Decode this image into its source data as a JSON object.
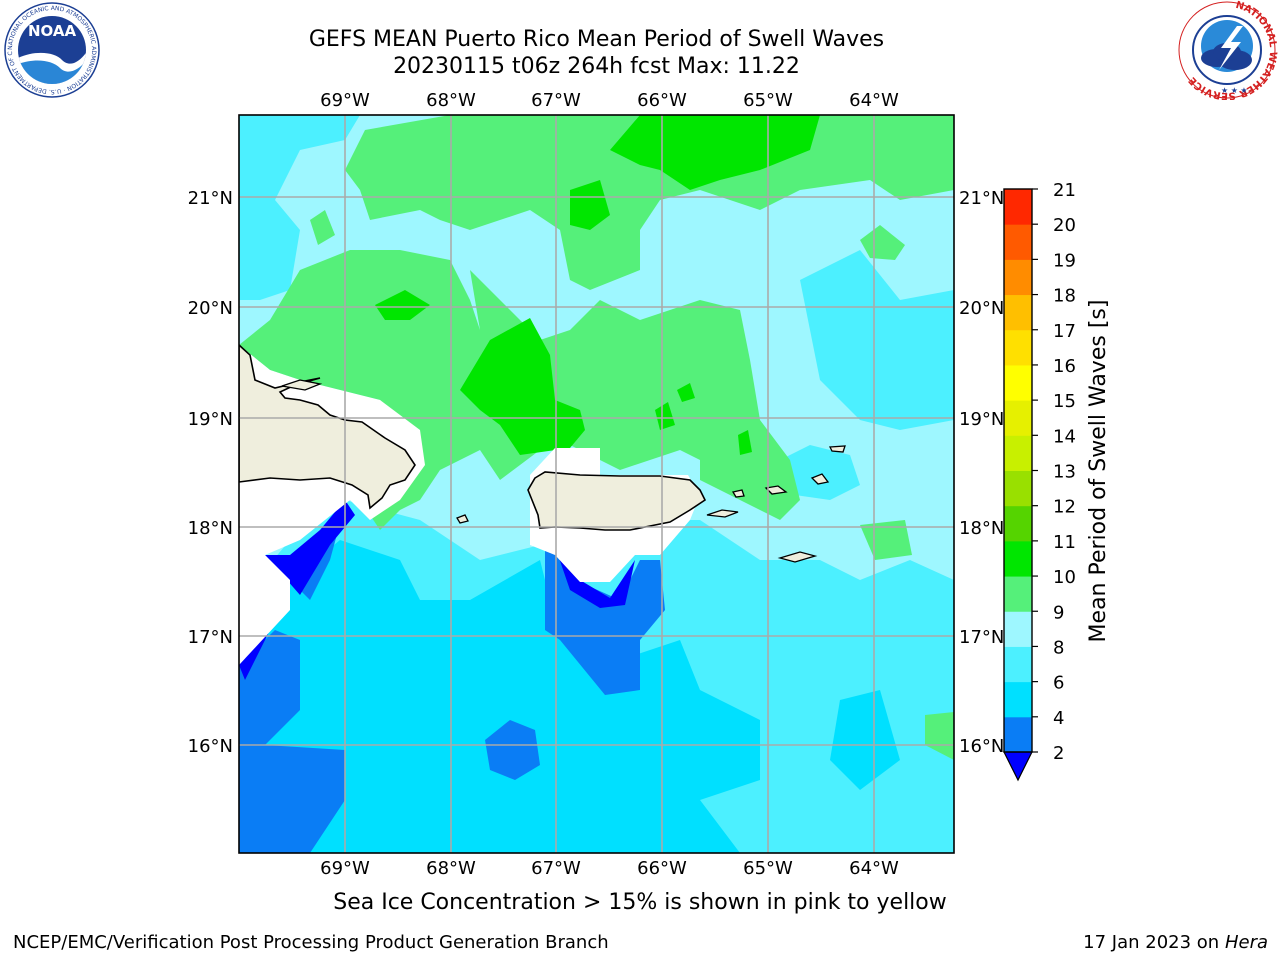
{
  "title": {
    "line1": "GEFS MEAN Puerto Rico Mean Period of Swell Waves",
    "line2": "20230115 t06z 264h fcst   Max: 11.22"
  },
  "map": {
    "lon_ticks": [
      "69°W",
      "68°W",
      "67°W",
      "66°W",
      "65°W",
      "64°W"
    ],
    "lat_ticks": [
      "21°N",
      "20°N",
      "19°N",
      "18°N",
      "17°N",
      "16°N"
    ]
  },
  "colorbar": {
    "label": "Mean Period of Swell Waves [s]",
    "levels": [
      "2",
      "4",
      "6",
      "8",
      "9",
      "10",
      "11",
      "12",
      "13",
      "14",
      "15",
      "16",
      "17",
      "18",
      "19",
      "20",
      "21"
    ],
    "colors": [
      "#0a7df5",
      "#00e0ff",
      "#4cf0ff",
      "#9ef7ff",
      "#55f07a",
      "#00e600",
      "#55d400",
      "#99e000",
      "#c8f000",
      "#e6f000",
      "#ffff00",
      "#ffe000",
      "#ffbf00",
      "#ff8c00",
      "#ff5a00",
      "#ff2800",
      "#ff0000"
    ],
    "under_color": "#0000ff"
  },
  "palette": {
    "deep_blue": "#0000ff",
    "blue": "#0a7df5",
    "cyan": "#00e0ff",
    "light_cyan": "#4cf0ff",
    "pale_cyan": "#9ef7ff",
    "light_green": "#55f07a",
    "green": "#00e600",
    "land": "#efeedd"
  },
  "caption": "Sea Ice Concentration > 15% is shown in pink to yellow",
  "footer": {
    "left": "NCEP/EMC/Verification Post Processing Product Generation Branch",
    "right_date": "17 Jan 2023 on",
    "right_host": "Hera"
  },
  "logos": {
    "noaa_text": "NOAA",
    "noaa_ring": "NATIONAL OCEANIC AND ATMOSPHERIC ADMINISTRATION · U.S. DEPARTMENT OF COMMERCE",
    "nws_ring": "NATIONAL WEATHER SERVICE"
  }
}
